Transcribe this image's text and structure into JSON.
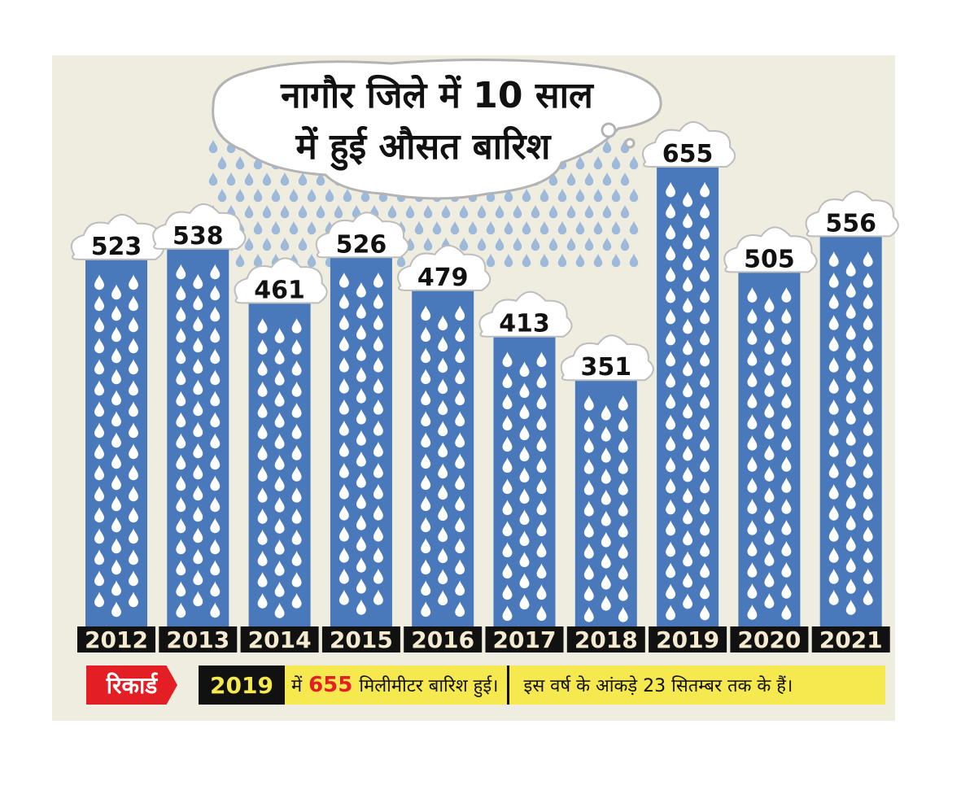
{
  "chart_data": {
    "type": "bar",
    "title_lines": [
      "नागौर जिले में 10 साल",
      "में हुई औसत बारिश"
    ],
    "categories": [
      "2012",
      "2013",
      "2014",
      "2015",
      "2016",
      "2017",
      "2018",
      "2019",
      "2020",
      "2021"
    ],
    "values": [
      523,
      538,
      461,
      526,
      479,
      413,
      351,
      655,
      505,
      556
    ],
    "colors": {
      "bar": "#4a79bb",
      "drop": "#ffffff",
      "rain": "#9eb9d9",
      "year_bg": "#111111",
      "year_text": "#f3ead0"
    }
  },
  "footer": {
    "badge": "रिकार्ड",
    "record_year": "2019",
    "text_prefix": "में",
    "record_value": "655",
    "text_suffix": "मिलीमीटर बारिश हुई।",
    "note": "इस वर्ष के आंकड़े 23 सितम्बर तक के हैं।",
    "colors": {
      "badge": "#e31e24",
      "strip": "#f6e84f"
    }
  }
}
